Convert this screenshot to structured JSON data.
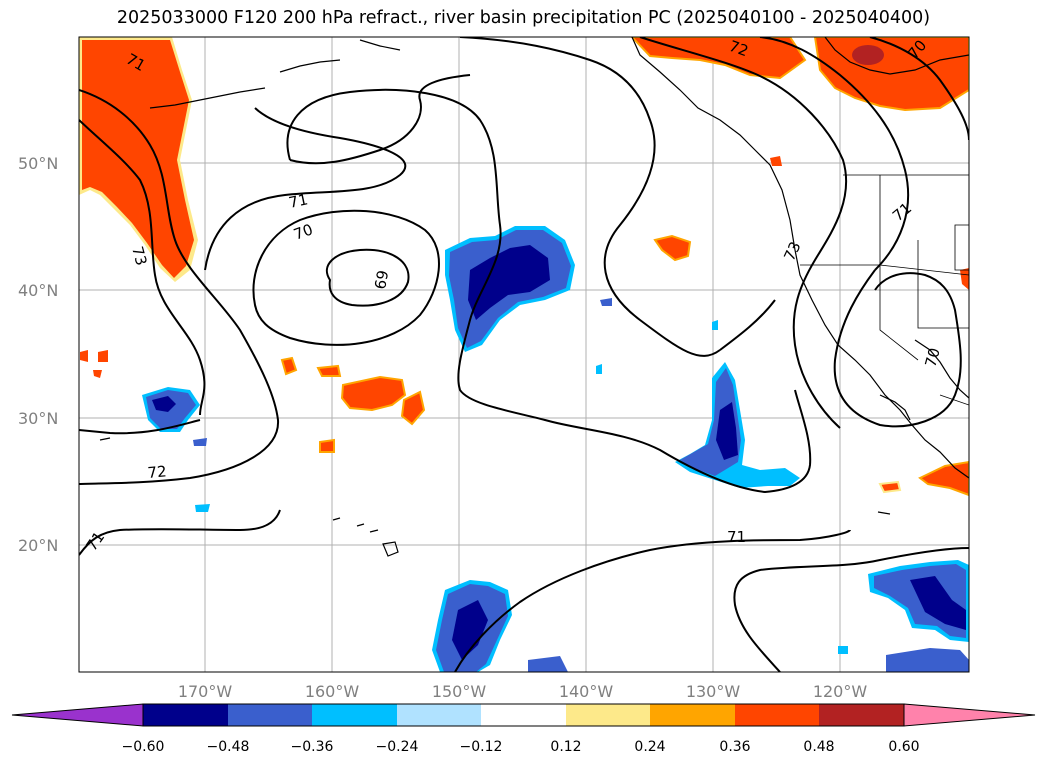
{
  "title": "2025033000 F120 200 hPa refract., river basin precipitation PC (2025040100 - 2025040400)",
  "lat_labels": [
    "50°N",
    "40°N",
    "30°N",
    "20°N"
  ],
  "lon_labels": [
    "170°W",
    "160°W",
    "150°W",
    "140°W",
    "130°W",
    "120°W"
  ],
  "contour_labels": [
    "71",
    "70",
    "69",
    "71",
    "72",
    "73",
    "71",
    "73",
    "72",
    "70",
    "70",
    "71",
    "71"
  ],
  "colorbar": {
    "ticks": [
      "−0.60",
      "−0.48",
      "−0.36",
      "−0.24",
      "−0.12",
      "0.12",
      "0.24",
      "0.36",
      "0.48",
      "0.60"
    ],
    "colors": [
      "#9a32cd",
      "#00008b",
      "#3a5fcd",
      "#00bfff",
      "#b0e2ff",
      "#ffffff",
      "#fde98a",
      "#ffa500",
      "#ff4500",
      "#b22222",
      "#ff82ab"
    ]
  }
}
